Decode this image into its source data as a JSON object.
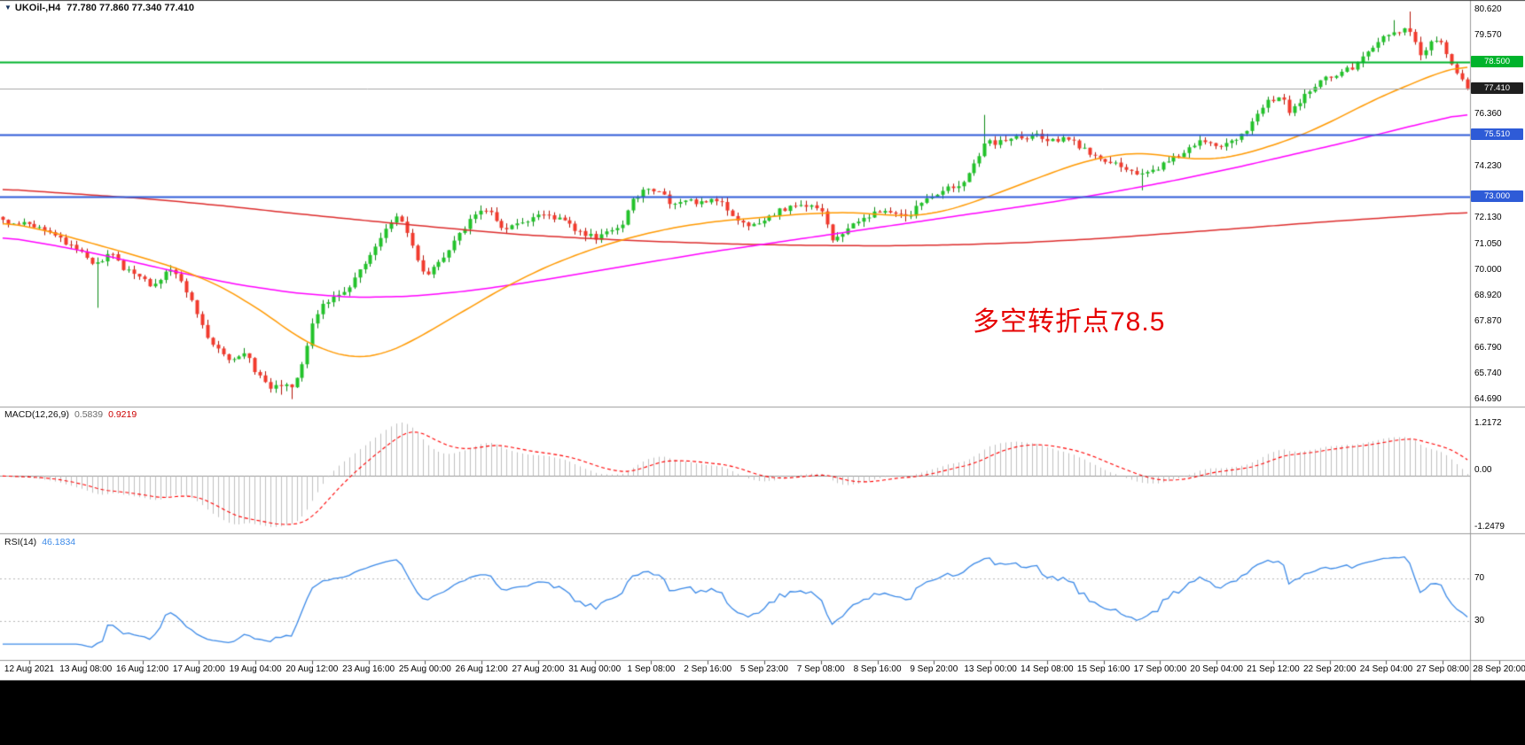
{
  "header": {
    "symbol": "UKOil-,H4",
    "ohlc": "77.780 77.860 77.340 77.410"
  },
  "colors": {
    "background": "#ffffff",
    "taskbar": "#000000",
    "up": "#22c32a",
    "up_dark": "#0c8a14",
    "down": "#f23a2d",
    "down_dark": "#b31408",
    "ma_fast": "#ff9900",
    "ma_medium": "#ff00ff",
    "ma_slow": "#dd2c2c",
    "level_green": "#00b32c",
    "level_blue": "#2e5bd7",
    "current_price_line": "#a8a8a8",
    "current_price_badge": "#1f1f1f",
    "macd_hist": "#c0c0c0",
    "macd_signal": "#ff0000",
    "rsi_line": "#3c8ae8",
    "separator": "#9a9a9a",
    "grid_dotted": "#b9b9b9",
    "annotation": "#e60000"
  },
  "chart_data": {
    "type": "candlestick",
    "title": "UKOil-,H4",
    "symbol": "UKOil-",
    "timeframe": "H4",
    "candle_count": 280,
    "price_range": {
      "min": 64.45,
      "max": 80.95
    },
    "price_axis_ticks": [
      "80.620",
      "79.570",
      "76.360",
      "74.230",
      "72.130",
      "71.050",
      "70.000",
      "68.920",
      "67.870",
      "66.790",
      "65.740",
      "64.690"
    ],
    "levels": [
      {
        "value": 78.5,
        "label": "78.500",
        "color": "#00b32c"
      },
      {
        "value": 75.51,
        "label": "75.510",
        "color": "#2e5bd7"
      },
      {
        "value": 73.0,
        "label": "73.000",
        "color": "#2e5bd7"
      }
    ],
    "current_price": {
      "value": 77.41,
      "label": "77.410"
    },
    "last_candle": {
      "open": 77.78,
      "high": 77.86,
      "low": 77.34,
      "close": 77.41
    },
    "close_path_anchors": [
      [
        0,
        72.0
      ],
      [
        0.018,
        71.9
      ],
      [
        0.033,
        71.45
      ],
      [
        0.045,
        71.05
      ],
      [
        0.057,
        70.5
      ],
      [
        0.066,
        70.15
      ],
      [
        0.075,
        70.75
      ],
      [
        0.083,
        70.05
      ],
      [
        0.093,
        69.7
      ],
      [
        0.103,
        69.35
      ],
      [
        0.112,
        70.05
      ],
      [
        0.121,
        69.75
      ],
      [
        0.13,
        68.6
      ],
      [
        0.139,
        67.3
      ],
      [
        0.148,
        66.6
      ],
      [
        0.159,
        66.25
      ],
      [
        0.166,
        66.55
      ],
      [
        0.175,
        65.6
      ],
      [
        0.184,
        65.15
      ],
      [
        0.192,
        65.35
      ],
      [
        0.197,
        65.1
      ],
      [
        0.205,
        66.3
      ],
      [
        0.212,
        67.9
      ],
      [
        0.22,
        68.65
      ],
      [
        0.228,
        69.0
      ],
      [
        0.236,
        69.3
      ],
      [
        0.244,
        70.0
      ],
      [
        0.253,
        70.75
      ],
      [
        0.262,
        71.6
      ],
      [
        0.27,
        72.25
      ],
      [
        0.277,
        71.3
      ],
      [
        0.285,
        70.1
      ],
      [
        0.291,
        69.85
      ],
      [
        0.3,
        70.5
      ],
      [
        0.308,
        71.1
      ],
      [
        0.315,
        71.75
      ],
      [
        0.323,
        72.3
      ],
      [
        0.331,
        72.45
      ],
      [
        0.338,
        71.9
      ],
      [
        0.345,
        71.65
      ],
      [
        0.353,
        71.95
      ],
      [
        0.362,
        72.1
      ],
      [
        0.371,
        72.3
      ],
      [
        0.38,
        72.05
      ],
      [
        0.389,
        71.75
      ],
      [
        0.397,
        71.45
      ],
      [
        0.404,
        71.3
      ],
      [
        0.413,
        71.55
      ],
      [
        0.422,
        71.8
      ],
      [
        0.429,
        72.9
      ],
      [
        0.437,
        73.2
      ],
      [
        0.446,
        73.3
      ],
      [
        0.455,
        72.75
      ],
      [
        0.466,
        72.9
      ],
      [
        0.476,
        72.75
      ],
      [
        0.486,
        72.95
      ],
      [
        0.495,
        72.45
      ],
      [
        0.504,
        72.0
      ],
      [
        0.513,
        71.75
      ],
      [
        0.522,
        72.15
      ],
      [
        0.531,
        72.45
      ],
      [
        0.542,
        72.6
      ],
      [
        0.552,
        72.75
      ],
      [
        0.561,
        72.3
      ],
      [
        0.567,
        71.15
      ],
      [
        0.573,
        71.5
      ],
      [
        0.58,
        71.9
      ],
      [
        0.591,
        72.2
      ],
      [
        0.603,
        72.4
      ],
      [
        0.619,
        72.25
      ],
      [
        0.63,
        72.9
      ],
      [
        0.642,
        73.25
      ],
      [
        0.657,
        73.5
      ],
      [
        0.663,
        74.3
      ],
      [
        0.671,
        75.3
      ],
      [
        0.678,
        75.1
      ],
      [
        0.688,
        75.45
      ],
      [
        0.695,
        75.3
      ],
      [
        0.706,
        75.5
      ],
      [
        0.715,
        75.2
      ],
      [
        0.724,
        75.45
      ],
      [
        0.733,
        75.1
      ],
      [
        0.743,
        74.7
      ],
      [
        0.753,
        74.4
      ],
      [
        0.763,
        74.25
      ],
      [
        0.772,
        74.05
      ],
      [
        0.779,
        73.8
      ],
      [
        0.787,
        74.15
      ],
      [
        0.796,
        74.5
      ],
      [
        0.81,
        74.9
      ],
      [
        0.819,
        75.3
      ],
      [
        0.828,
        75.05
      ],
      [
        0.838,
        75.3
      ],
      [
        0.849,
        75.6
      ],
      [
        0.856,
        76.3
      ],
      [
        0.864,
        76.9
      ],
      [
        0.872,
        77.15
      ],
      [
        0.878,
        76.5
      ],
      [
        0.887,
        77.0
      ],
      [
        0.896,
        77.55
      ],
      [
        0.905,
        77.85
      ],
      [
        0.914,
        78.1
      ],
      [
        0.925,
        78.4
      ],
      [
        0.934,
        79.0
      ],
      [
        0.942,
        79.45
      ],
      [
        0.951,
        79.7
      ],
      [
        0.959,
        79.9
      ],
      [
        0.963,
        79.55
      ],
      [
        0.968,
        78.6
      ],
      [
        0.974,
        79.2
      ],
      [
        0.98,
        79.45
      ],
      [
        0.986,
        78.9
      ],
      [
        0.992,
        78.1
      ],
      [
        0.996,
        77.8
      ],
      [
        1,
        77.41
      ]
    ],
    "forced_wicks": [
      {
        "i_frac": 0.066,
        "low": 68.45
      },
      {
        "i_frac": 0.189,
        "low": 64.9
      },
      {
        "i_frac": 0.197,
        "low": 64.72
      },
      {
        "i_frac": 0.671,
        "high": 76.33
      },
      {
        "i_frac": 0.779,
        "low": 73.25
      },
      {
        "i_frac": 0.951,
        "high": 80.2
      },
      {
        "i_frac": 0.959,
        "high": 80.55
      }
    ],
    "moving_averages": [
      {
        "name": "slow-ma",
        "color": "#dd2c2c",
        "points": [
          [
            0,
            73.3
          ],
          [
            0.05,
            73.1
          ],
          [
            0.1,
            72.9
          ],
          [
            0.15,
            72.62
          ],
          [
            0.2,
            72.3
          ],
          [
            0.25,
            72.0
          ],
          [
            0.3,
            71.72
          ],
          [
            0.35,
            71.45
          ],
          [
            0.4,
            71.28
          ],
          [
            0.45,
            71.15
          ],
          [
            0.5,
            71.05
          ],
          [
            0.55,
            71.0
          ],
          [
            0.6,
            70.98
          ],
          [
            0.65,
            71.02
          ],
          [
            0.7,
            71.12
          ],
          [
            0.75,
            71.28
          ],
          [
            0.8,
            71.5
          ],
          [
            0.85,
            71.72
          ],
          [
            0.9,
            71.95
          ],
          [
            0.95,
            72.15
          ],
          [
            1,
            72.35
          ]
        ]
      },
      {
        "name": "medium-ma",
        "color": "#ff00ff",
        "points": [
          [
            0,
            71.35
          ],
          [
            0.04,
            70.95
          ],
          [
            0.08,
            70.45
          ],
          [
            0.12,
            69.9
          ],
          [
            0.16,
            69.4
          ],
          [
            0.2,
            69.05
          ],
          [
            0.24,
            68.87
          ],
          [
            0.28,
            68.92
          ],
          [
            0.32,
            69.15
          ],
          [
            0.36,
            69.5
          ],
          [
            0.4,
            69.9
          ],
          [
            0.44,
            70.3
          ],
          [
            0.48,
            70.7
          ],
          [
            0.52,
            71.05
          ],
          [
            0.56,
            71.4
          ],
          [
            0.6,
            71.75
          ],
          [
            0.64,
            72.1
          ],
          [
            0.68,
            72.45
          ],
          [
            0.72,
            72.8
          ],
          [
            0.76,
            73.2
          ],
          [
            0.8,
            73.65
          ],
          [
            0.84,
            74.15
          ],
          [
            0.88,
            74.7
          ],
          [
            0.92,
            75.25
          ],
          [
            0.96,
            75.85
          ],
          [
            1,
            76.4
          ]
        ]
      },
      {
        "name": "fast-ma",
        "color": "#ff9900",
        "points": [
          [
            0,
            71.95
          ],
          [
            0.03,
            71.6
          ],
          [
            0.06,
            71.1
          ],
          [
            0.09,
            70.6
          ],
          [
            0.12,
            70.05
          ],
          [
            0.15,
            69.3
          ],
          [
            0.18,
            68.2
          ],
          [
            0.2,
            67.3
          ],
          [
            0.22,
            66.7
          ],
          [
            0.24,
            66.4
          ],
          [
            0.26,
            66.55
          ],
          [
            0.28,
            67.1
          ],
          [
            0.31,
            68.15
          ],
          [
            0.34,
            69.2
          ],
          [
            0.37,
            70.1
          ],
          [
            0.4,
            70.8
          ],
          [
            0.43,
            71.35
          ],
          [
            0.46,
            71.75
          ],
          [
            0.49,
            72.0
          ],
          [
            0.52,
            72.15
          ],
          [
            0.55,
            72.3
          ],
          [
            0.58,
            72.35
          ],
          [
            0.6,
            72.25
          ],
          [
            0.62,
            72.2
          ],
          [
            0.64,
            72.35
          ],
          [
            0.66,
            72.7
          ],
          [
            0.68,
            73.15
          ],
          [
            0.7,
            73.6
          ],
          [
            0.72,
            74.05
          ],
          [
            0.74,
            74.45
          ],
          [
            0.76,
            74.7
          ],
          [
            0.78,
            74.78
          ],
          [
            0.8,
            74.6
          ],
          [
            0.82,
            74.5
          ],
          [
            0.84,
            74.62
          ],
          [
            0.86,
            74.95
          ],
          [
            0.88,
            75.35
          ],
          [
            0.9,
            75.85
          ],
          [
            0.92,
            76.45
          ],
          [
            0.94,
            77.05
          ],
          [
            0.96,
            77.55
          ],
          [
            0.98,
            78.05
          ],
          [
            1,
            78.35
          ]
        ]
      }
    ],
    "indicators": [
      {
        "name": "MACD",
        "label": "MACD(12,26,9)",
        "main_value": "0.5839",
        "signal_value": "0.9219",
        "axis_ticks": [
          "1.2172",
          "0.00",
          "-1.2479"
        ]
      },
      {
        "name": "RSI",
        "label": "RSI(14)",
        "value": "46.1834",
        "axis_ticks": [
          "70",
          "30"
        ],
        "levels": [
          70,
          30
        ]
      }
    ],
    "time_axis": [
      "12 Aug 2021",
      "13 Aug 08:00",
      "16 Aug 12:00",
      "17 Aug 20:00",
      "19 Aug 04:00",
      "20 Aug 12:00",
      "23 Aug 16:00",
      "25 Aug 00:00",
      "26 Aug 12:00",
      "27 Aug 20:00",
      "31 Aug 00:00",
      "1 Sep 08:00",
      "2 Sep 16:00",
      "5 Sep 23:00",
      "7 Sep 08:00",
      "8 Sep 16:00",
      "9 Sep 20:00",
      "13 Sep 00:00",
      "14 Sep 08:00",
      "15 Sep 16:00",
      "17 Sep 00:00",
      "20 Sep 04:00",
      "21 Sep 12:00",
      "22 Sep 20:00",
      "24 Sep 04:00",
      "27 Sep 08:00",
      "28 Sep 20:00"
    ],
    "annotation": {
      "text": "多空转折点78.5",
      "color": "#e60000"
    }
  }
}
